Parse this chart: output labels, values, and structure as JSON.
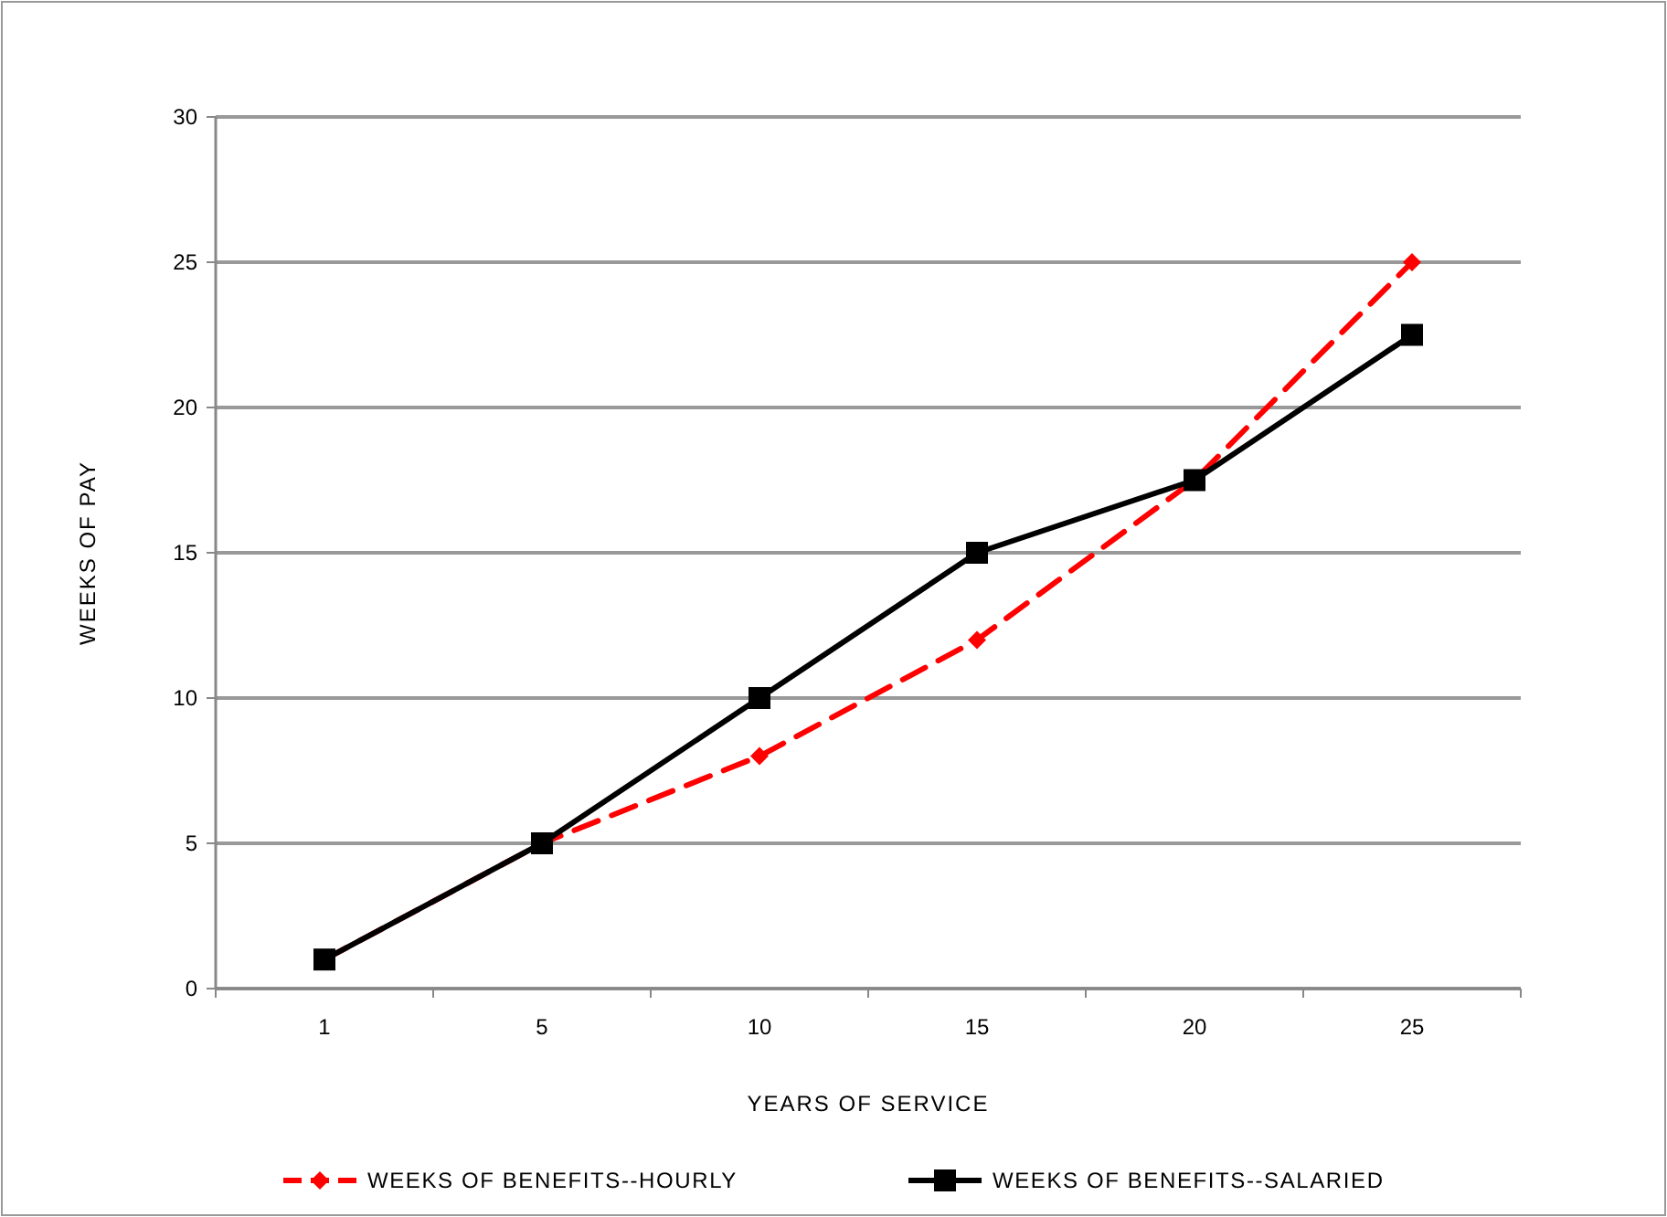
{
  "chart_data": {
    "type": "line",
    "xlabel": "YEARS OF SERVICE",
    "ylabel": "WEEKS OF PAY",
    "categories": [
      "1",
      "5",
      "10",
      "15",
      "20",
      "25"
    ],
    "series": [
      {
        "name": "WEEKS OF BENEFITS--HOURLY",
        "color": "#ff0000",
        "values": [
          1,
          5,
          8,
          12,
          17.5,
          25
        ],
        "marker": "diamond",
        "line_style": "dashed"
      },
      {
        "name": "WEEKS OF BENEFITS--SALARIED",
        "color": "#000000",
        "values": [
          1,
          5,
          10,
          15,
          17.5,
          22.5
        ],
        "marker": "square",
        "line_style": "solid"
      }
    ],
    "ylim": [
      0,
      30
    ],
    "yticks": [
      0,
      5,
      10,
      15,
      20,
      25,
      30
    ],
    "grid": "y",
    "legend": "bottom"
  }
}
